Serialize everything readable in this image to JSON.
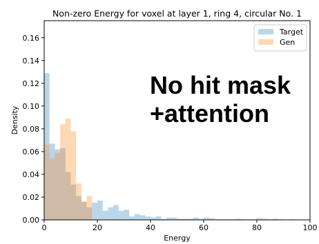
{
  "chart_data": {
    "type": "bar",
    "title": "Non-zero Energy for voxel at layer 1, ring 4, circular No. 1",
    "xlabel": "Energy",
    "ylabel": "Density",
    "xlim": [
      0,
      100
    ],
    "ylim": [
      0,
      0.175
    ],
    "xticks": [
      "0",
      "20",
      "40",
      "60",
      "80",
      "100"
    ],
    "yticks": [
      "0.00",
      "0.02",
      "0.04",
      "0.06",
      "0.08",
      "0.10",
      "0.12",
      "0.14",
      "0.16"
    ],
    "legend_position": "top-right",
    "bin_width": 2,
    "series": [
      {
        "name": "Target",
        "color": "#1f77b4",
        "alpha": 0.3,
        "values": [
          0.129,
          0.067,
          0.062,
          0.063,
          0.042,
          0.031,
          0.021,
          0.016,
          0.011,
          0.015,
          0.017,
          0.008,
          0.011,
          0.013,
          0.008,
          0.009,
          0.003,
          0.005,
          0.004,
          0.003,
          0.002,
          0.003,
          0.001,
          0.002,
          0.002,
          0.001,
          0.001,
          0.001,
          0.002,
          0.001,
          0.002,
          0.0015,
          0.0005,
          0.0005,
          0.0005,
          0.0005,
          0.001,
          0.0005,
          0.0005,
          0.0005,
          0.0015,
          0.001,
          0.0005,
          0.001,
          0.0005,
          0,
          0.0005,
          0,
          0,
          0
        ]
      },
      {
        "name": "Gen",
        "color": "#ff7f0e",
        "alpha": 0.3,
        "values": [
          0.066,
          0.054,
          0.059,
          0.084,
          0.089,
          0.078,
          0.032,
          0.016,
          0.021,
          0,
          0,
          0,
          0,
          0,
          0,
          0,
          0,
          0,
          0,
          0,
          0,
          0,
          0,
          0,
          0,
          0,
          0,
          0,
          0,
          0,
          0,
          0,
          0,
          0,
          0,
          0,
          0,
          0,
          0,
          0,
          0,
          0,
          0,
          0,
          0,
          0,
          0,
          0,
          0,
          0
        ]
      }
    ]
  },
  "annotation": {
    "line1": "No hit mask",
    "line2": "+attention"
  }
}
